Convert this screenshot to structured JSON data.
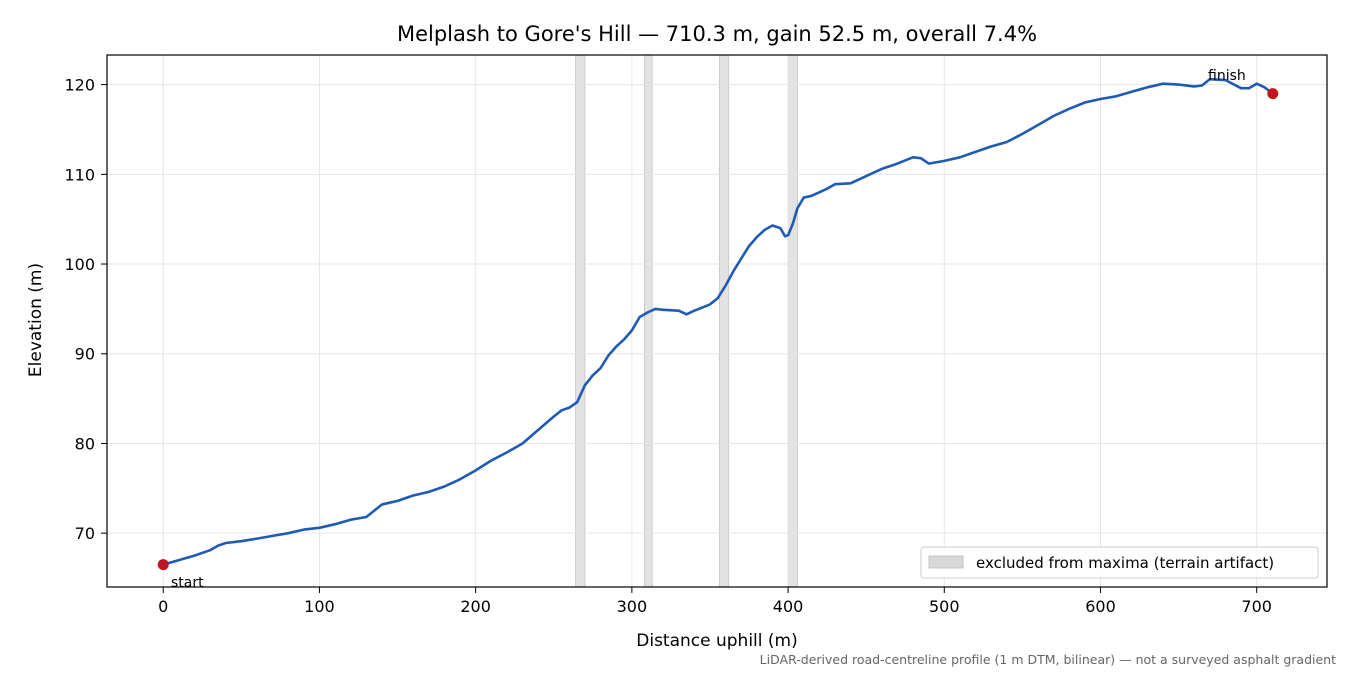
{
  "chart_data": {
    "type": "line",
    "title": "Melplash to Gore's Hill — 710.3 m, gain 52.5 m, overall 7.4%",
    "xlabel": "Distance uphill (m)",
    "ylabel": "Elevation (m)",
    "xlim": [
      -36,
      745
    ],
    "ylim": [
      64,
      123.3
    ],
    "x_ticks": [
      0,
      100,
      200,
      300,
      400,
      500,
      600,
      700
    ],
    "y_ticks": [
      70,
      80,
      90,
      100,
      110,
      120
    ],
    "grid": true,
    "legend_position": "lower-right",
    "series": [
      {
        "color": "#1f5bb4",
        "points": [
          [
            0,
            66.5
          ],
          [
            10,
            67.0
          ],
          [
            20,
            67.5
          ],
          [
            30,
            68.1
          ],
          [
            35,
            68.6
          ],
          [
            40,
            68.9
          ],
          [
            50,
            69.1
          ],
          [
            60,
            69.4
          ],
          [
            70,
            69.7
          ],
          [
            80,
            70.0
          ],
          [
            90,
            70.4
          ],
          [
            100,
            70.6
          ],
          [
            110,
            71.0
          ],
          [
            120,
            71.5
          ],
          [
            130,
            71.8
          ],
          [
            135,
            72.5
          ],
          [
            140,
            73.2
          ],
          [
            145,
            73.4
          ],
          [
            150,
            73.6
          ],
          [
            160,
            74.2
          ],
          [
            170,
            74.6
          ],
          [
            180,
            75.2
          ],
          [
            190,
            76.0
          ],
          [
            200,
            77.0
          ],
          [
            210,
            78.1
          ],
          [
            220,
            79.0
          ],
          [
            230,
            80.0
          ],
          [
            240,
            81.5
          ],
          [
            250,
            83.0
          ],
          [
            255,
            83.7
          ],
          [
            260,
            84.0
          ],
          [
            265,
            84.6
          ],
          [
            270,
            86.5
          ],
          [
            275,
            87.6
          ],
          [
            280,
            88.4
          ],
          [
            285,
            89.8
          ],
          [
            290,
            90.8
          ],
          [
            295,
            91.6
          ],
          [
            300,
            92.6
          ],
          [
            305,
            94.1
          ],
          [
            310,
            94.6
          ],
          [
            315,
            95.0
          ],
          [
            320,
            94.9
          ],
          [
            330,
            94.8
          ],
          [
            335,
            94.4
          ],
          [
            340,
            94.8
          ],
          [
            350,
            95.5
          ],
          [
            355,
            96.2
          ],
          [
            360,
            97.6
          ],
          [
            365,
            99.2
          ],
          [
            370,
            100.6
          ],
          [
            375,
            102.0
          ],
          [
            380,
            103.0
          ],
          [
            385,
            103.8
          ],
          [
            390,
            104.3
          ],
          [
            395,
            104.0
          ],
          [
            398,
            103.1
          ],
          [
            400,
            103.2
          ],
          [
            403,
            104.5
          ],
          [
            406,
            106.2
          ],
          [
            410,
            107.4
          ],
          [
            415,
            107.6
          ],
          [
            420,
            108.0
          ],
          [
            425,
            108.4
          ],
          [
            430,
            108.9
          ],
          [
            440,
            109.0
          ],
          [
            450,
            109.8
          ],
          [
            460,
            110.6
          ],
          [
            470,
            111.2
          ],
          [
            480,
            111.9
          ],
          [
            485,
            111.8
          ],
          [
            490,
            111.2
          ],
          [
            500,
            111.5
          ],
          [
            510,
            111.9
          ],
          [
            520,
            112.5
          ],
          [
            530,
            113.1
          ],
          [
            540,
            113.6
          ],
          [
            550,
            114.5
          ],
          [
            560,
            115.5
          ],
          [
            570,
            116.5
          ],
          [
            580,
            117.3
          ],
          [
            590,
            118.0
          ],
          [
            600,
            118.4
          ],
          [
            610,
            118.7
          ],
          [
            620,
            119.2
          ],
          [
            630,
            119.7
          ],
          [
            640,
            120.1
          ],
          [
            650,
            120.0
          ],
          [
            660,
            119.8
          ],
          [
            665,
            119.9
          ],
          [
            670,
            120.6
          ],
          [
            680,
            120.5
          ],
          [
            690,
            119.6
          ],
          [
            695,
            119.6
          ],
          [
            700,
            120.1
          ],
          [
            705,
            119.7
          ],
          [
            710.3,
            119.0
          ]
        ]
      }
    ],
    "excluded_bands": [
      [
        264,
        270
      ],
      [
        308,
        313
      ],
      [
        356,
        362
      ],
      [
        400,
        406
      ]
    ],
    "endpoints": {
      "start": {
        "x": 0,
        "y": 66.5,
        "label": "start"
      },
      "finish": {
        "x": 710.3,
        "y": 119.0,
        "label": "finish"
      }
    },
    "legend": {
      "label": "excluded from maxima (terrain artifact)"
    },
    "footnote": "LiDAR-derived road-centreline profile (1 m DTM, bilinear) — not a surveyed asphalt gradient",
    "colors": {
      "line": "#1f5bb4",
      "marker": "#c0161f",
      "band": "#d8d8d8",
      "grid": "#e6e6e6"
    }
  }
}
